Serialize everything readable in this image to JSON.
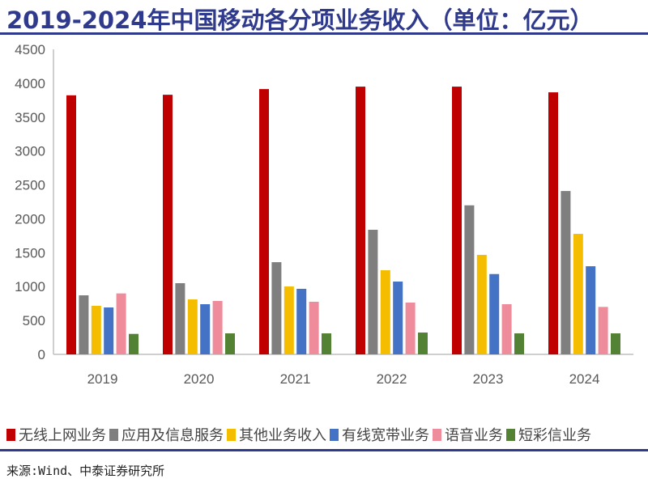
{
  "title": "2019-2024年中国移动各分项业务收入（单位：亿元）",
  "source": "来源:Wind、中泰证券研究所",
  "chart_data": {
    "type": "bar",
    "title": "2019-2024年中国移动各分项业务收入（单位：亿元）",
    "categories": [
      "2019",
      "2020",
      "2021",
      "2022",
      "2023",
      "2024"
    ],
    "ylim": [
      0,
      4500
    ],
    "yticks": [
      "0",
      "500",
      "1000",
      "1500",
      "2000",
      "2500",
      "3000",
      "3500",
      "4000",
      "4500"
    ],
    "grid": false,
    "legend": "bottom",
    "series": [
      {
        "name": "无线上网业务",
        "color": "#c00000",
        "values": [
          3822,
          3830,
          3914,
          3950,
          3950,
          3866
        ]
      },
      {
        "name": "应用及信息服务",
        "color": "#7f7f7f",
        "values": [
          871,
          1050,
          1360,
          1838,
          2199,
          2410
        ]
      },
      {
        "name": "其他业务收入",
        "color": "#f5bd00",
        "values": [
          716,
          811,
          1002,
          1241,
          1468,
          1778
        ]
      },
      {
        "name": "有线宽带业务",
        "color": "#4472c4",
        "values": [
          692,
          740,
          967,
          1074,
          1185,
          1300
        ]
      },
      {
        "name": "语音业务",
        "color": "#ef8c9c",
        "values": [
          899,
          788,
          776,
          764,
          740,
          700
        ]
      },
      {
        "name": "短彩信业务",
        "color": "#548235",
        "values": [
          302,
          310,
          310,
          322,
          310,
          310
        ]
      }
    ]
  }
}
